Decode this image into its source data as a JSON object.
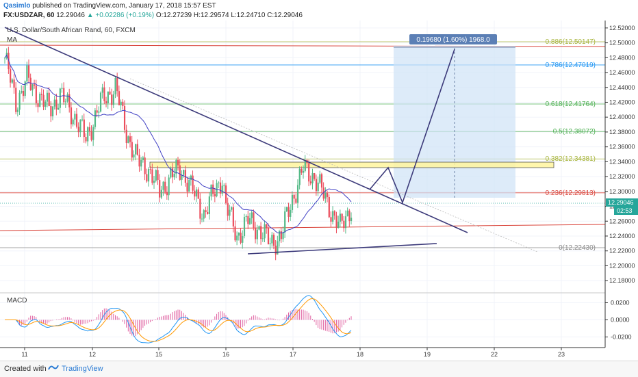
{
  "header": {
    "author": "Qasimlo",
    "published": "published on TradingView.com, January 17, 2018 15:57 EST",
    "symbol": "FX:USDZAR, 60",
    "last": "12.29046",
    "change": "▲ +0.02286 (+0.19%)",
    "ohlc": "O:12.27239 H:12.29574 L:12.24710 C:12.29046"
  },
  "chart_data": {
    "type": "candlestick",
    "title": "U.S. Dollar/South African Rand, 60, FXCM",
    "indicator_label": "MA",
    "ylim": [
      12.17,
      12.53
    ],
    "y_ticks": [
      "12.52000",
      "12.50000",
      "12.48000",
      "12.46000",
      "12.44000",
      "12.42000",
      "12.40000",
      "12.38000",
      "12.36000",
      "12.34000",
      "12.32000",
      "12.30000",
      "12.28000",
      "12.26000",
      "12.24000",
      "12.22000",
      "12.20000",
      "12.18000"
    ],
    "x_ticks": [
      "11",
      "12",
      "15",
      "16",
      "17",
      "18",
      "19",
      "22",
      "23"
    ],
    "current_price": "12.29046",
    "countdown": "02:53",
    "fib_levels": [
      {
        "label": "0.886(12.50147)",
        "price": 12.50147,
        "color": "#a7b43c"
      },
      {
        "label": "0.786(12.47019)",
        "price": 12.47019,
        "color": "#2196f3"
      },
      {
        "label": "0.618(12.41764)",
        "price": 12.41764,
        "color": "#4caf50"
      },
      {
        "label": "0.5(12.38072)",
        "price": 12.38072,
        "color": "#4caf50"
      },
      {
        "label": "0.382(12.34381)",
        "price": 12.34381,
        "color": "#a7b43c"
      },
      {
        "label": "0.236(12.29813)",
        "price": 12.29813,
        "color": "#d9443b"
      },
      {
        "label": "0(12.22430)",
        "price": 12.2243,
        "color": "#888888"
      }
    ],
    "measure_label": "0.19680 (1.60%) 1968.0",
    "macd": {
      "label": "MACD",
      "ylim": [
        -0.03,
        0.03
      ],
      "y_ticks": [
        "0.0200",
        "0.0000",
        "-0.0200"
      ]
    },
    "colors": {
      "up": "#53b987",
      "down": "#eb4d5c",
      "ma": "#3f3fc4",
      "trend": "#3c3a7a"
    }
  },
  "footer": {
    "created_with": "Created with",
    "brand": "TradingView"
  }
}
